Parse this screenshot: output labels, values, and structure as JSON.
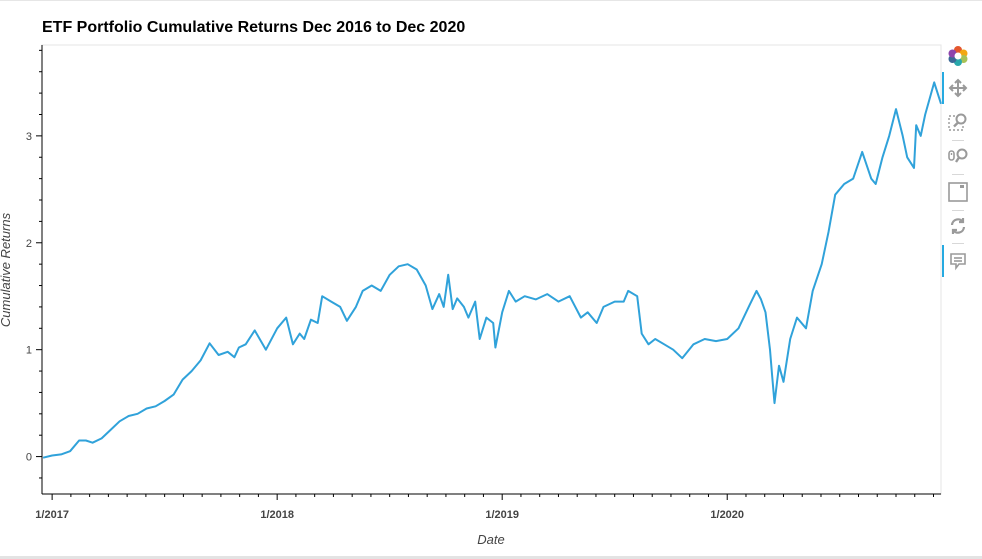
{
  "chart_data": {
    "type": "line",
    "title": "ETF Portfolio Cumulative Returns Dec 2016 to Dec 2020",
    "xlabel": "Date",
    "ylabel": "Cumulative Returns",
    "xlim": [
      2016.955,
      2020.95
    ],
    "ylim": [
      -0.35,
      3.85
    ],
    "yticks": [
      0,
      1,
      2,
      3
    ],
    "yticks_labels": [
      "0",
      "1",
      "2",
      "3"
    ],
    "xticks": [
      2017.0,
      2018.0,
      2019.0,
      2020.0
    ],
    "xticks_labels": [
      "1/2017",
      "1/2018",
      "1/2019",
      "1/2020"
    ],
    "grid": false,
    "series": [
      {
        "color": "#30a2da",
        "x": [
          2016.96,
          2017.0,
          2017.04,
          2017.08,
          2017.12,
          2017.15,
          2017.18,
          2017.22,
          2017.26,
          2017.3,
          2017.34,
          2017.38,
          2017.42,
          2017.46,
          2017.5,
          2017.54,
          2017.58,
          2017.62,
          2017.66,
          2017.7,
          2017.74,
          2017.78,
          2017.81,
          2017.83,
          2017.86,
          2017.9,
          2017.95,
          2018.0,
          2018.04,
          2018.07,
          2018.1,
          2018.12,
          2018.15,
          2018.18,
          2018.2,
          2018.24,
          2018.28,
          2018.31,
          2018.35,
          2018.38,
          2018.42,
          2018.46,
          2018.5,
          2018.54,
          2018.58,
          2018.62,
          2018.66,
          2018.69,
          2018.72,
          2018.74,
          2018.76,
          2018.78,
          2018.8,
          2018.83,
          2018.85,
          2018.88,
          2018.9,
          2018.93,
          2018.96,
          2018.97,
          2019.0,
          2019.03,
          2019.06,
          2019.1,
          2019.15,
          2019.2,
          2019.25,
          2019.3,
          2019.35,
          2019.38,
          2019.42,
          2019.45,
          2019.5,
          2019.54,
          2019.56,
          2019.6,
          2019.62,
          2019.65,
          2019.68,
          2019.72,
          2019.76,
          2019.8,
          2019.85,
          2019.9,
          2019.95,
          2020.0,
          2020.05,
          2020.1,
          2020.13,
          2020.15,
          2020.17,
          2020.19,
          2020.2,
          2020.21,
          2020.23,
          2020.25,
          2020.28,
          2020.31,
          2020.35,
          2020.38,
          2020.42,
          2020.45,
          2020.48,
          2020.52,
          2020.56,
          2020.6,
          2020.64,
          2020.66,
          2020.69,
          2020.72,
          2020.75,
          2020.78,
          2020.8,
          2020.83,
          2020.84,
          2020.86,
          2020.88,
          2020.9,
          2020.92,
          2020.95
        ],
        "y": [
          -0.01,
          0.01,
          0.02,
          0.05,
          0.15,
          0.15,
          0.13,
          0.17,
          0.25,
          0.33,
          0.38,
          0.4,
          0.45,
          0.47,
          0.52,
          0.58,
          0.72,
          0.8,
          0.9,
          1.06,
          0.95,
          0.98,
          0.93,
          1.02,
          1.05,
          1.18,
          1.0,
          1.2,
          1.3,
          1.05,
          1.15,
          1.1,
          1.28,
          1.25,
          1.5,
          1.45,
          1.4,
          1.27,
          1.4,
          1.55,
          1.6,
          1.55,
          1.7,
          1.78,
          1.8,
          1.75,
          1.6,
          1.38,
          1.52,
          1.4,
          1.7,
          1.38,
          1.48,
          1.4,
          1.3,
          1.45,
          1.1,
          1.3,
          1.25,
          1.02,
          1.35,
          1.55,
          1.45,
          1.5,
          1.47,
          1.52,
          1.45,
          1.5,
          1.3,
          1.35,
          1.25,
          1.4,
          1.45,
          1.45,
          1.55,
          1.5,
          1.15,
          1.05,
          1.1,
          1.05,
          1.0,
          0.92,
          1.05,
          1.1,
          1.08,
          1.1,
          1.2,
          1.42,
          1.55,
          1.47,
          1.35,
          1.0,
          0.75,
          0.5,
          0.85,
          0.7,
          1.1,
          1.3,
          1.2,
          1.55,
          1.8,
          2.1,
          2.45,
          2.55,
          2.6,
          2.85,
          2.6,
          2.55,
          2.8,
          3.0,
          3.25,
          3.0,
          2.8,
          2.7,
          3.1,
          3.0,
          3.2,
          3.35,
          3.5,
          3.3
        ]
      }
    ]
  },
  "toolbar": {
    "tools": [
      {
        "name": "bokeh-logo-icon"
      },
      {
        "name": "pan-icon"
      },
      {
        "name": "box-zoom-icon"
      },
      {
        "name": "wheel-zoom-icon"
      },
      {
        "name": "save-icon"
      },
      {
        "name": "reset-icon"
      },
      {
        "name": "hover-icon"
      }
    ]
  }
}
